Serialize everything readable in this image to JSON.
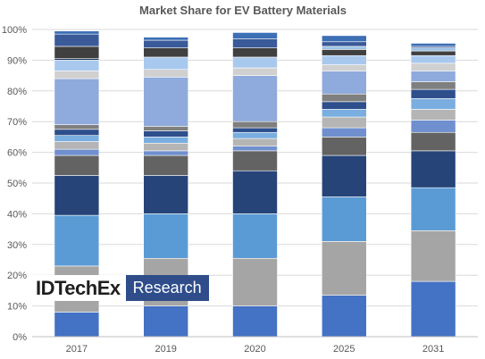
{
  "chart_data": {
    "type": "bar",
    "stacked": true,
    "title": "Market Share for EV Battery Materials",
    "xlabel": "",
    "ylabel": "",
    "ylim": [
      0,
      100
    ],
    "yticks": [
      "0%",
      "10%",
      "20%",
      "30%",
      "40%",
      "50%",
      "60%",
      "70%",
      "80%",
      "90%",
      "100%"
    ],
    "categories": [
      "2017",
      "2019",
      "2020",
      "2025",
      "2031"
    ],
    "grid": "horizontal",
    "legend": "none",
    "colors": [
      "#4472c4",
      "#a5a5a5",
      "#5b9bd5",
      "#264478",
      "#636363",
      "#6f8fcf",
      "#b5b5b5",
      "#7aaee0",
      "#2e4f8c",
      "#7f7f7f",
      "#8faadc",
      "#d0d0d0",
      "#a9c8ee",
      "#1f3864",
      "#404040",
      "#9dc3e6",
      "#3a5a99",
      "#3d6fb5"
    ],
    "series": [
      {
        "values": [
          8,
          10,
          10,
          13.5,
          18
        ]
      },
      {
        "values": [
          15,
          15.5,
          15.5,
          17.5,
          16.5
        ]
      },
      {
        "values": [
          16.5,
          14.5,
          14.5,
          14.5,
          14
        ]
      },
      {
        "values": [
          13,
          12.5,
          14,
          13.5,
          12
        ]
      },
      {
        "values": [
          6.5,
          6.5,
          6.5,
          6,
          6
        ]
      },
      {
        "values": [
          2,
          1.5,
          1.5,
          3,
          4
        ]
      },
      {
        "values": [
          2.5,
          2.5,
          2.5,
          3.5,
          3.5
        ]
      },
      {
        "values": [
          2,
          2,
          2,
          2.5,
          3.5
        ]
      },
      {
        "values": [
          2,
          2,
          1.5,
          2.5,
          3
        ]
      },
      {
        "values": [
          1.5,
          1.5,
          2,
          2.5,
          2.5
        ]
      },
      {
        "values": [
          15,
          16,
          15,
          7.5,
          3.5
        ]
      },
      {
        "values": [
          2.5,
          2.5,
          2.5,
          2,
          2.5
        ]
      },
      {
        "values": [
          3.5,
          4,
          3.5,
          3,
          2.5
        ]
      },
      {
        "values": [
          0.5,
          0,
          0,
          0,
          0
        ]
      },
      {
        "values": [
          4,
          3,
          3,
          2,
          1.5
        ]
      },
      {
        "values": [
          0,
          0,
          0,
          1,
          1
        ]
      },
      {
        "values": [
          4,
          2.5,
          3,
          1.5,
          0.5
        ]
      },
      {
        "values": [
          1,
          1,
          2,
          2,
          1
        ]
      }
    ]
  },
  "watermark": {
    "brand": "IDTechEx",
    "sub": "Research",
    "bg_color": "#2e4d8a"
  }
}
